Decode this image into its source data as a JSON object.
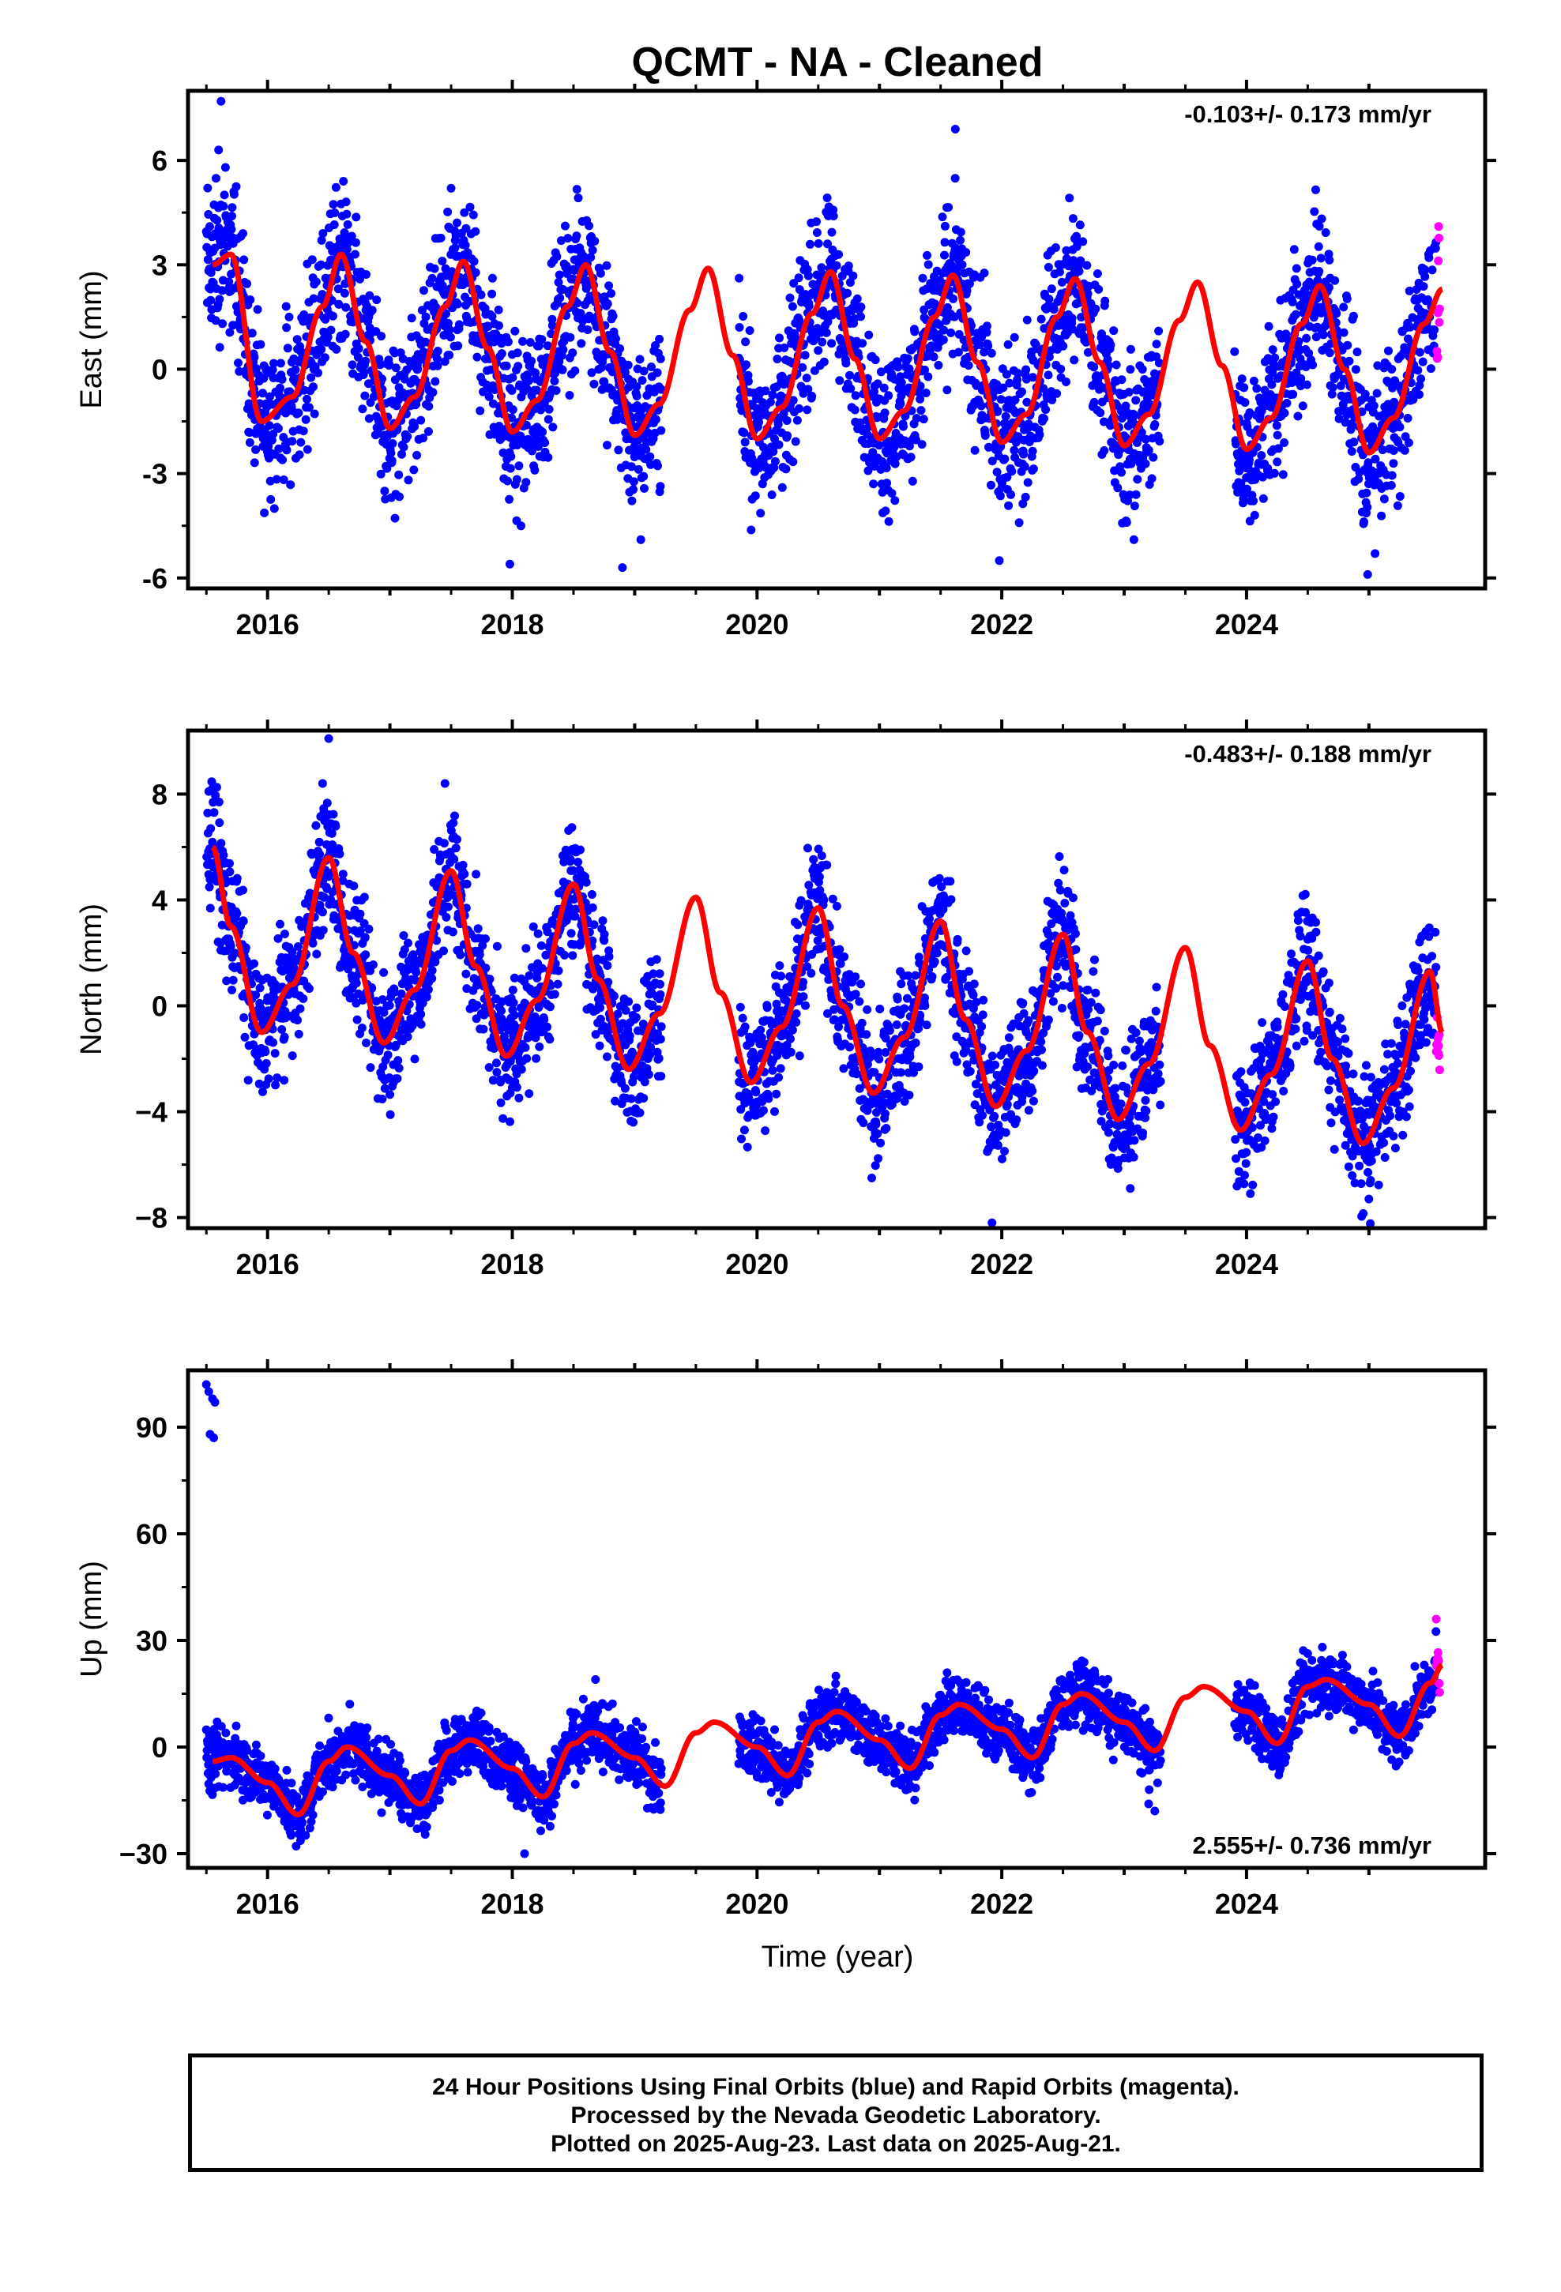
{
  "title": "QCMT  - NA - Cleaned",
  "x_axis_label": "Time (year)",
  "x_tick_labels": [
    "2016",
    "2018",
    "2020",
    "2022",
    "2024"
  ],
  "footer": {
    "line1": "24 Hour Positions Using Final Orbits (blue) and Rapid Orbits (magenta).",
    "line2": "Processed by the Nevada Geodetic Laboratory.",
    "line3": "Plotted on 2025-Aug-23. Last data on 2025-Aug-21."
  },
  "colors": {
    "final_points": "#0000ff",
    "rapid_points": "#ff00ff",
    "model_fit": "#ff0000",
    "frame": "#000000"
  },
  "chart_data": [
    {
      "type": "scatter",
      "panel": "east",
      "ylabel": "East (mm)",
      "rate_text": "-0.103+/- 0.173 mm/yr",
      "xlim": [
        2015.35,
        2025.95
      ],
      "ylim": [
        -6.3,
        8.0
      ],
      "yticks": [
        -6,
        -3,
        0,
        3,
        6
      ],
      "ytick_labels": [
        "-6",
        "-3",
        "0",
        "3",
        "6"
      ],
      "grid": false,
      "model": {
        "trend_mm_per_yr": -0.103,
        "x": [
          2015.55,
          2015.7,
          2015.95,
          2016.2,
          2016.45,
          2016.6,
          2016.8,
          2017.0,
          2017.2,
          2017.45,
          2017.6,
          2017.8,
          2018.0,
          2018.2,
          2018.45,
          2018.6,
          2018.8,
          2019.0,
          2019.2,
          2019.45,
          2019.6,
          2019.8,
          2020.0,
          2020.2,
          2020.45,
          2020.6,
          2020.8,
          2021.0,
          2021.2,
          2021.45,
          2021.6,
          2021.8,
          2022.0,
          2022.2,
          2022.45,
          2022.6,
          2022.8,
          2023.0,
          2023.2,
          2023.45,
          2023.6,
          2023.8,
          2024.0,
          2024.2,
          2024.45,
          2024.6,
          2024.8,
          2025.0,
          2025.2,
          2025.45,
          2025.6
        ],
        "y": [
          3.0,
          3.3,
          -1.5,
          -0.8,
          1.8,
          3.3,
          0.8,
          -1.7,
          -0.8,
          1.8,
          3.1,
          0.6,
          -1.8,
          -0.9,
          1.8,
          3.0,
          0.5,
          -1.9,
          -1.0,
          1.7,
          2.9,
          0.4,
          -2.0,
          -1.1,
          1.6,
          2.8,
          0.3,
          -2.0,
          -1.2,
          1.5,
          2.7,
          0.2,
          -2.1,
          -1.3,
          1.5,
          2.6,
          0.2,
          -2.2,
          -1.3,
          1.4,
          2.5,
          0.1,
          -2.3,
          -1.4,
          1.3,
          2.4,
          0.0,
          -2.4,
          -1.4,
          1.3,
          2.3
        ]
      },
      "points": {
        "start": 2015.5,
        "end": 2025.58,
        "gaps": [
          [
            2019.22,
            2019.85
          ],
          [
            2023.3,
            2023.9
          ]
        ],
        "spread_mm": 1.1,
        "rapid_start": 2025.55,
        "outliers": [
          [
            2015.62,
            7.7
          ],
          [
            2015.6,
            6.3
          ],
          [
            2016.62,
            5.4
          ],
          [
            2017.5,
            5.2
          ],
          [
            2017.98,
            -5.6
          ],
          [
            2018.9,
            -5.7
          ],
          [
            2019.05,
            -4.9
          ],
          [
            2021.62,
            6.9
          ],
          [
            2021.98,
            -5.5
          ],
          [
            2023.08,
            -4.9
          ],
          [
            2024.99,
            -5.9
          ],
          [
            2025.05,
            -5.3
          ]
        ]
      }
    },
    {
      "type": "scatter",
      "panel": "north",
      "ylabel": "North (mm)",
      "rate_text": "-0.483+/- 0.188 mm/yr",
      "xlim": [
        2015.35,
        2025.95
      ],
      "ylim": [
        -8.4,
        10.4
      ],
      "yticks": [
        -8,
        -4,
        0,
        4,
        8
      ],
      "ytick_labels": [
        "−8",
        "−4",
        "0",
        "4",
        "8"
      ],
      "grid": false,
      "model": {
        "trend_mm_per_yr": -0.483,
        "x": [
          2015.55,
          2015.7,
          2015.95,
          2016.2,
          2016.5,
          2016.7,
          2016.95,
          2017.2,
          2017.5,
          2017.7,
          2017.95,
          2018.2,
          2018.5,
          2018.7,
          2018.95,
          2019.2,
          2019.5,
          2019.7,
          2019.95,
          2020.2,
          2020.5,
          2020.7,
          2020.95,
          2021.2,
          2021.5,
          2021.7,
          2021.95,
          2022.2,
          2022.5,
          2022.7,
          2022.95,
          2023.2,
          2023.5,
          2023.7,
          2023.95,
          2024.2,
          2024.5,
          2024.7,
          2024.95,
          2025.2,
          2025.5,
          2025.6
        ],
        "y": [
          6.0,
          3.0,
          -1.0,
          0.8,
          5.6,
          2.0,
          -1.4,
          0.6,
          5.1,
          1.5,
          -1.9,
          0.2,
          4.6,
          1.0,
          -2.4,
          -0.3,
          4.1,
          0.5,
          -2.9,
          -0.8,
          3.7,
          0.0,
          -3.3,
          -1.2,
          3.2,
          -0.5,
          -3.8,
          -1.7,
          2.7,
          -1.0,
          -4.3,
          -2.2,
          2.2,
          -1.5,
          -4.7,
          -2.6,
          1.7,
          -2.0,
          -5.2,
          -3.1,
          1.3,
          -1.0
        ]
      },
      "points": {
        "start": 2015.5,
        "end": 2025.58,
        "gaps": [
          [
            2019.22,
            2019.85
          ],
          [
            2023.3,
            2023.9
          ]
        ],
        "spread_mm": 1.2,
        "rapid_start": 2025.55,
        "outliers": [
          [
            2015.52,
            8.1
          ],
          [
            2016.5,
            10.1
          ],
          [
            2016.45,
            8.4
          ],
          [
            2017.45,
            8.4
          ],
          [
            2021.92,
            -8.2
          ],
          [
            2023.05,
            -6.9
          ],
          [
            2024.15,
            -5.1
          ],
          [
            2025.0,
            -7.3
          ]
        ]
      }
    },
    {
      "type": "scatter",
      "panel": "up",
      "ylabel": "Up (mm)",
      "rate_text": "2.555+/- 0.736 mm/yr",
      "xlim": [
        2015.35,
        2025.95
      ],
      "ylim": [
        -34,
        106
      ],
      "yticks": [
        -30,
        0,
        30,
        60,
        90
      ],
      "ytick_labels": [
        "−30",
        "0",
        "30",
        "60",
        "90"
      ],
      "grid": false,
      "model": {
        "trend_mm_per_yr": 2.555,
        "x": [
          2015.55,
          2015.7,
          2016.0,
          2016.25,
          2016.5,
          2016.65,
          2017.0,
          2017.25,
          2017.5,
          2017.65,
          2018.0,
          2018.25,
          2018.5,
          2018.65,
          2019.0,
          2019.25,
          2019.5,
          2019.65,
          2020.0,
          2020.25,
          2020.5,
          2020.65,
          2021.0,
          2021.25,
          2021.5,
          2021.65,
          2022.0,
          2022.25,
          2022.5,
          2022.65,
          2023.0,
          2023.25,
          2023.5,
          2023.65,
          2024.0,
          2024.25,
          2024.5,
          2024.65,
          2025.0,
          2025.25,
          2025.5,
          2025.6
        ],
        "y": [
          -4,
          -3,
          -10,
          -19,
          -4,
          0,
          -8,
          -16,
          -1,
          2,
          -6,
          -14,
          1,
          4,
          -3,
          -11,
          4,
          7,
          0,
          -8,
          7,
          10,
          2,
          -6,
          9,
          12,
          5,
          -3,
          12,
          15,
          7,
          -1,
          14,
          17,
          10,
          1,
          17,
          19,
          12,
          3,
          18,
          23
        ]
      },
      "points": {
        "start": 2015.5,
        "end": 2025.58,
        "gaps": [
          [
            2019.22,
            2019.85
          ],
          [
            2023.3,
            2023.9
          ]
        ],
        "spread_mm": 4.2,
        "rapid_start": 2025.55,
        "outliers": [
          [
            2015.5,
            102
          ],
          [
            2015.52,
            100
          ],
          [
            2015.55,
            98
          ],
          [
            2015.57,
            97
          ],
          [
            2015.53,
            88
          ],
          [
            2015.56,
            87
          ],
          [
            2018.1,
            -30
          ],
          [
            2018.68,
            19
          ],
          [
            2023.25,
            -18
          ],
          [
            2023.2,
            -16
          ],
          [
            2025.55,
            36
          ]
        ]
      }
    }
  ]
}
